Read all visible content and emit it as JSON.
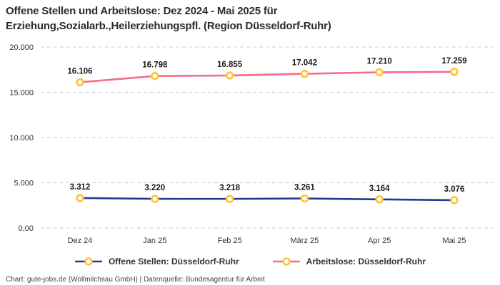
{
  "title": {
    "line1": "Offene Stellen und Arbeitslose: Dez 2024 - Mai 2025 für",
    "line2": "Erziehung,Sozialarb.,Heilerziehungspfl. (Region Düsseldorf-Ruhr)"
  },
  "chart_data": {
    "type": "line",
    "categories": [
      "Dez 24",
      "Jan 25",
      "Feb 25",
      "März 25",
      "Apr 25",
      "Mai 25"
    ],
    "series": [
      {
        "name": "Offene Stellen: Düsseldorf-Ruhr",
        "values": [
          3312,
          3220,
          3218,
          3261,
          3164,
          3076
        ],
        "labels": [
          "3.312",
          "3.220",
          "3.218",
          "3.261",
          "3.164",
          "3.076"
        ],
        "color": "#1E3C96"
      },
      {
        "name": "Arbeitslose: Düsseldorf-Ruhr",
        "values": [
          16106,
          16798,
          16855,
          17042,
          17210,
          17259
        ],
        "labels": [
          "16.106",
          "16.798",
          "16.855",
          "17.042",
          "17.210",
          "17.259"
        ],
        "color": "#F56C85"
      }
    ],
    "marker": {
      "stroke": "#FFC233",
      "fill": "#FFFFFF"
    },
    "ylim": [
      0,
      20000
    ],
    "yticks": [
      {
        "value": 20000,
        "label": "20.000"
      },
      {
        "value": 15000,
        "label": "15.000"
      },
      {
        "value": 10000,
        "label": "10.000"
      },
      {
        "value": 5000,
        "label": "5.000"
      },
      {
        "value": 0,
        "label": "0,00"
      }
    ],
    "grid": "horizontal-dashed",
    "legend_position": "bottom"
  },
  "footer": {
    "text": "Chart: gute-jobs.de (Wollmilchsau GmbH) | Datenquelle: Bundesagentur für Arbeit"
  }
}
